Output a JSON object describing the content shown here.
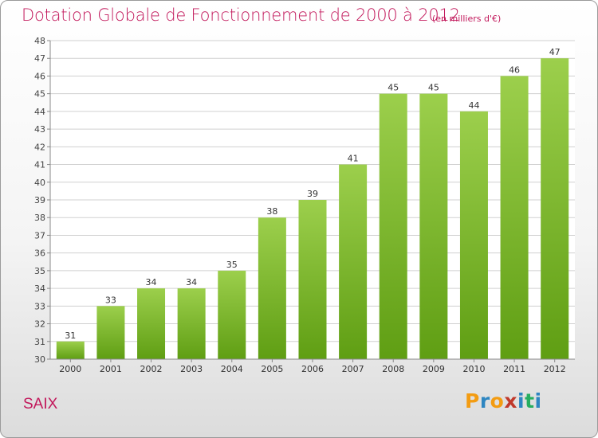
{
  "title": "Dotation Globale de Fonctionnement de 2000 à 2012",
  "subtitle": "(en milliers d'€)",
  "city": "SAIX",
  "logo": {
    "letters": [
      "P",
      "r",
      "o",
      "x",
      "i",
      "t",
      "i"
    ],
    "colors": [
      "#f39c12",
      "#2e86c1",
      "#f39c12",
      "#c0392b",
      "#2e86c1",
      "#27ae60",
      "#2e86c1"
    ]
  },
  "colors": {
    "bar_top": "#9ccf4c",
    "bar_bottom": "#5f9e13",
    "title": "#c2185b",
    "grid": "#d0d0d0"
  },
  "chart_data": {
    "type": "bar",
    "categories": [
      "2000",
      "2001",
      "2002",
      "2003",
      "2004",
      "2005",
      "2006",
      "2007",
      "2008",
      "2009",
      "2010",
      "2011",
      "2012"
    ],
    "values": [
      31,
      33,
      34,
      34,
      35,
      38,
      39,
      41,
      45,
      45,
      44,
      46,
      47
    ],
    "title": "Dotation Globale de Fonctionnement de 2000 à 2012",
    "xlabel": "",
    "ylabel": "",
    "ylim": [
      30,
      48
    ],
    "yticks": [
      30,
      31,
      32,
      33,
      34,
      35,
      36,
      37,
      38,
      39,
      40,
      41,
      42,
      43,
      44,
      45,
      46,
      47,
      48
    ],
    "grid": true
  }
}
